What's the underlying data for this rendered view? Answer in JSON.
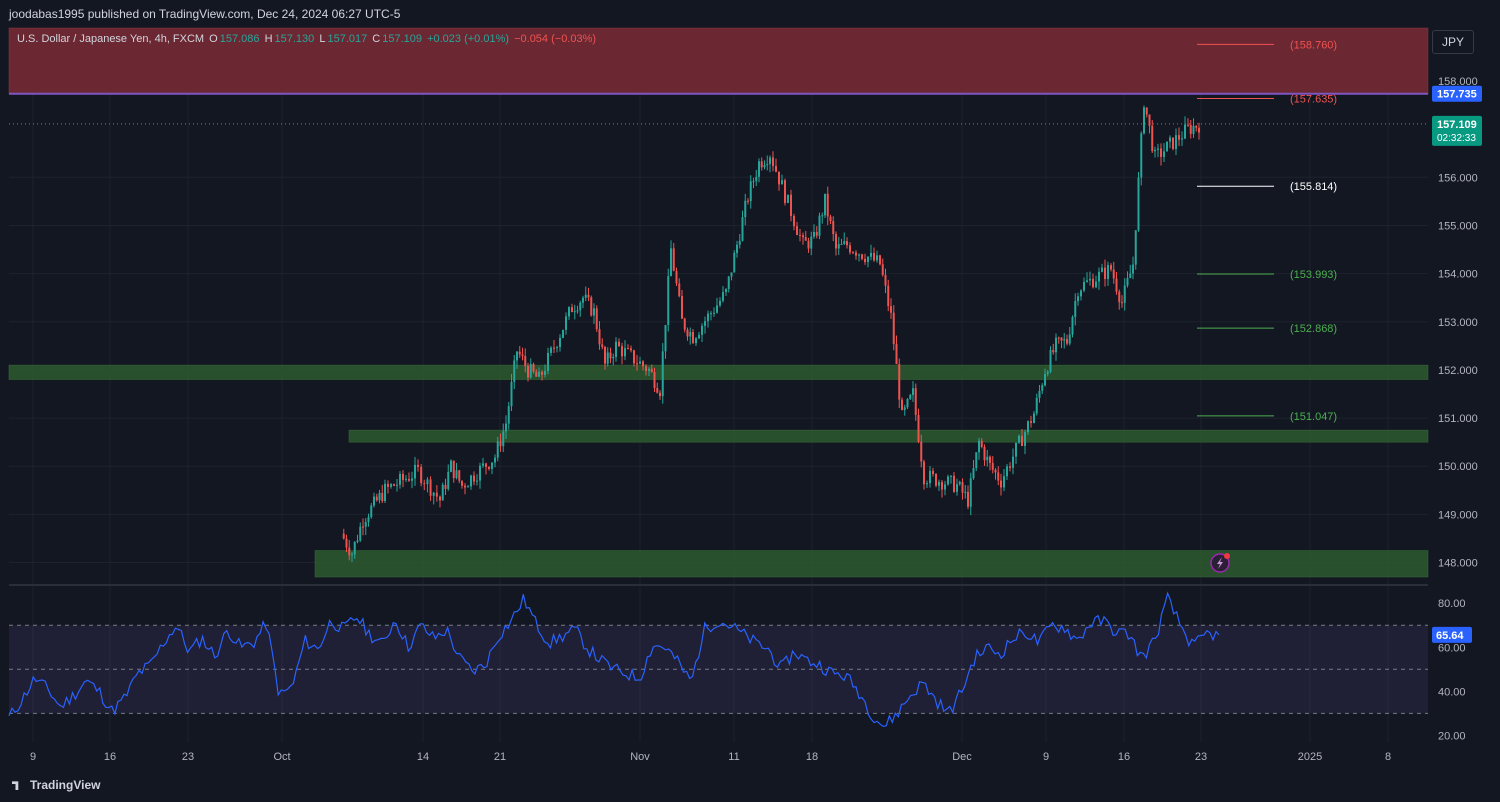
{
  "header": {
    "publisher": "joodabas1995 published on TradingView.com, Dec 24, 2024 06:27 UTC-5",
    "symbol": "U.S. Dollar / Japanese Yen, 4h, FXCM",
    "open_label": "O",
    "open": "157.086",
    "high_label": "H",
    "high": "157.130",
    "low_label": "L",
    "low": "157.017",
    "close_label": "C",
    "close": "157.109",
    "change_pos": "+0.023 (+0.01%)",
    "change_neg": "−0.054 (−0.03%)"
  },
  "currency_button": "JPY",
  "footer": {
    "brand": "TradingView"
  },
  "colors": {
    "up": "#26a69a",
    "down": "#ef5350",
    "background": "#131722",
    "rsi": "#2962ff",
    "resistance_zone": "#7b2a35",
    "support_zone": "#2e5a2e",
    "pivot": "#7e57c2"
  },
  "chart_data": [
    {
      "type": "candlestick",
      "title": "",
      "x_ticks": [
        "9",
        "16",
        "23",
        "Oct",
        "14",
        "21",
        "Nov",
        "11",
        "18",
        "Dec",
        "9",
        "16",
        "23",
        "2025",
        "8"
      ],
      "y_ticks": [
        "148.000",
        "149.000",
        "150.000",
        "151.000",
        "152.000",
        "153.000",
        "154.000",
        "155.000",
        "156.000",
        "158.000"
      ],
      "ylim": [
        147.7,
        159.1
      ],
      "grid": true,
      "price_label": "157.735",
      "last_price": "157.109",
      "countdown": "02:32:33",
      "fib_levels": [
        {
          "label": "(158.760)",
          "value": 158.76,
          "color": "#ef5350"
        },
        {
          "label": "(157.635)",
          "value": 157.635,
          "color": "#ef5350"
        },
        {
          "label": "(155.814)",
          "value": 155.814,
          "color": "#ffffff"
        },
        {
          "label": "(153.993)",
          "value": 153.993,
          "color": "#4caf50"
        },
        {
          "label": "(152.868)",
          "value": 152.868,
          "color": "#4caf50"
        },
        {
          "label": "(151.047)",
          "value": 151.047,
          "color": "#4caf50"
        }
      ],
      "zones": [
        {
          "kind": "resistance",
          "from": 157.735,
          "to": 159.1
        },
        {
          "kind": "support",
          "from": 151.8,
          "to": 152.1
        },
        {
          "kind": "support",
          "from": 150.5,
          "to": 150.75
        },
        {
          "kind": "support",
          "from": 147.7,
          "to": 148.25
        }
      ],
      "horizontal_line": 157.735,
      "series_path": [
        [
          "Oct 7",
          148.6
        ],
        [
          "Oct 8",
          148.2
        ],
        [
          "Oct 9",
          148.9
        ],
        [
          "Oct 10",
          149.2
        ],
        [
          "Oct 11",
          149.5
        ],
        [
          "Oct 14",
          149.9
        ],
        [
          "Oct 16",
          149.3
        ],
        [
          "Oct 17",
          150.0
        ],
        [
          "Oct 18",
          149.6
        ],
        [
          "Oct 21",
          150.2
        ],
        [
          "Oct 22",
          150.9
        ],
        [
          "Oct 23",
          152.4
        ],
        [
          "Oct 24",
          152.0
        ],
        [
          "Oct 25",
          151.8
        ],
        [
          "Oct 28",
          153.3
        ],
        [
          "Oct 29",
          153.5
        ],
        [
          "Oct 30",
          153.2
        ],
        [
          "Oct 31",
          152.1
        ],
        [
          "Nov 1",
          152.5
        ],
        [
          "Nov 4",
          152.0
        ],
        [
          "Nov 5",
          151.6
        ],
        [
          "Nov 6",
          154.5
        ],
        [
          "Nov 7",
          153.0
        ],
        [
          "Nov 8",
          152.7
        ],
        [
          "Nov 11",
          153.6
        ],
        [
          "Nov 12",
          154.6
        ],
        [
          "Nov 13",
          155.6
        ],
        [
          "Nov 14",
          156.3
        ],
        [
          "Nov 15",
          156.5
        ],
        [
          "Nov 18",
          154.6
        ],
        [
          "Nov 19",
          154.7
        ],
        [
          "Nov 20",
          155.5
        ],
        [
          "Nov 21",
          154.5
        ],
        [
          "Nov 22",
          154.6
        ],
        [
          "Nov 25",
          154.2
        ],
        [
          "Nov 26",
          153.1
        ],
        [
          "Nov 27",
          151.0
        ],
        [
          "Nov 28",
          151.5
        ],
        [
          "Nov 29",
          149.8
        ],
        [
          "Dec 2",
          149.6
        ],
        [
          "Dec 3",
          149.3
        ],
        [
          "Dec 4",
          150.5
        ],
        [
          "Dec 5",
          150.0
        ],
        [
          "Dec 6",
          149.7
        ],
        [
          "Dec 9",
          151.1
        ],
        [
          "Dec 10",
          152.0
        ],
        [
          "Dec 11",
          152.5
        ],
        [
          "Dec 12",
          152.6
        ],
        [
          "Dec 13",
          153.7
        ],
        [
          "Dec 16",
          154.1
        ],
        [
          "Dec 17",
          153.4
        ],
        [
          "Dec 18",
          154.2
        ],
        [
          "Dec 19",
          157.6
        ],
        [
          "Dec 20",
          156.4
        ],
        [
          "Dec 23",
          157.0
        ],
        [
          "Dec 24",
          157.1
        ]
      ]
    },
    {
      "type": "line",
      "title": "",
      "y_ticks": [
        "20.00",
        "40.00",
        "60.00",
        "80.00"
      ],
      "ylim": [
        17,
        86
      ],
      "bands": [
        30,
        50,
        70
      ],
      "last_value_label": "65.64",
      "series": [
        {
          "values": [
            28,
            36,
            46,
            41,
            33,
            38,
            45,
            40,
            31,
            37,
            48,
            52,
            62,
            70,
            58,
            64,
            56,
            68,
            60,
            62,
            71,
            38,
            42,
            63,
            59,
            72,
            68,
            74,
            66,
            61,
            73,
            60,
            70,
            64,
            68,
            55,
            49,
            52,
            65,
            72,
            82,
            70,
            62,
            65,
            68,
            59,
            54,
            50,
            48,
            46,
            61,
            60,
            53,
            44,
            68,
            72,
            70,
            66,
            62,
            59,
            50,
            58,
            54,
            52,
            48,
            47,
            40,
            30,
            24,
            30,
            38,
            44,
            36,
            30,
            40,
            55,
            60,
            57,
            64,
            67,
            62,
            70,
            69,
            63,
            71,
            72,
            67,
            66,
            55,
            63,
            82,
            70,
            60,
            66,
            65.64
          ]
        }
      ]
    }
  ]
}
